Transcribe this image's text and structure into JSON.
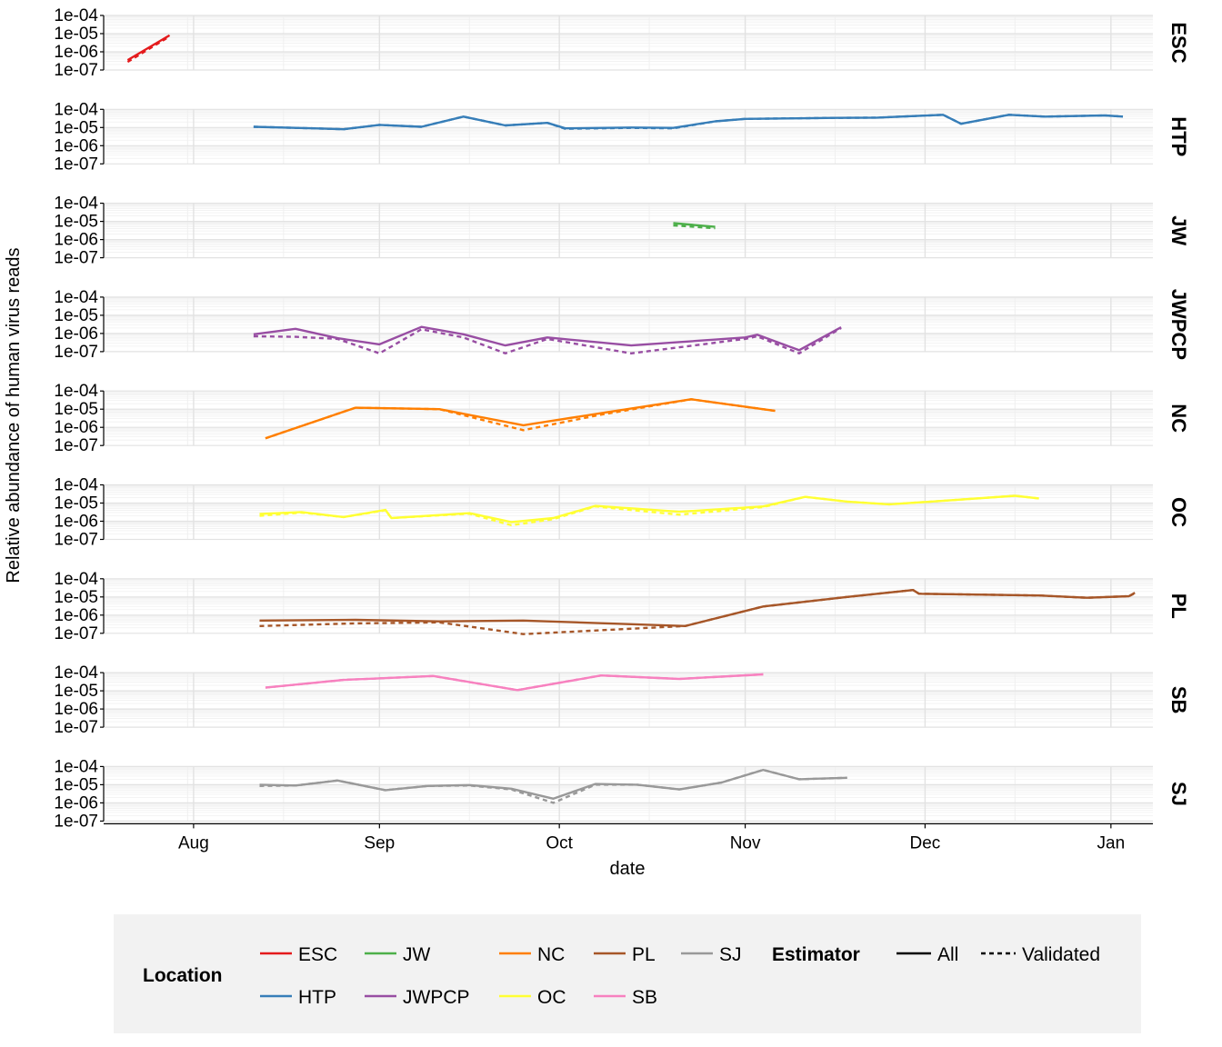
{
  "chart_data": {
    "type": "line",
    "xlabel": "date",
    "ylabel": "Relative abundance of human virus reads",
    "x_ticks": [
      "Aug",
      "Sep",
      "Oct",
      "Nov",
      "Dec",
      "Jan"
    ],
    "x_tick_dates": [
      "2020-08-01",
      "2020-09-01",
      "2020-10-01",
      "2020-11-01",
      "2020-12-01",
      "2021-01-01"
    ],
    "x_range": [
      "2020-07-17",
      "2021-01-08"
    ],
    "y_scale": "log10",
    "y_ticks": [
      "1e-04",
      "1e-05",
      "1e-06",
      "1e-07"
    ],
    "y_range": [
      1e-07,
      0.0001
    ],
    "grid": true,
    "legend": {
      "placement": "bottom",
      "location_title": "Location",
      "estimator_title": "Estimator",
      "locations": [
        {
          "name": "ESC",
          "color": "#E41A1C"
        },
        {
          "name": "HTP",
          "color": "#377EB8"
        },
        {
          "name": "JW",
          "color": "#4DAF4A"
        },
        {
          "name": "JWPCP",
          "color": "#984EA3"
        },
        {
          "name": "NC",
          "color": "#FF7F00"
        },
        {
          "name": "OC",
          "color": "#FFFF33"
        },
        {
          "name": "PL",
          "color": "#A65628"
        },
        {
          "name": "SB",
          "color": "#F781BF"
        },
        {
          "name": "SJ",
          "color": "#999999"
        }
      ],
      "estimators": [
        {
          "name": "All",
          "dash": "solid"
        },
        {
          "name": "Validated",
          "dash": "dashed"
        }
      ]
    },
    "panels": [
      {
        "strip": "ESC",
        "color": "#E41A1C",
        "all": [
          [
            "2020-07-21",
            3.5e-07
          ],
          [
            "2020-07-28",
            8e-06
          ]
        ],
        "validated": [
          [
            "2020-07-21",
            2.8e-07
          ],
          [
            "2020-07-28",
            7e-06
          ]
        ]
      },
      {
        "strip": "HTP",
        "color": "#377EB8",
        "all": [
          [
            "2020-08-11",
            1.1e-05
          ],
          [
            "2020-08-21",
            9e-06
          ],
          [
            "2020-08-26",
            8e-06
          ],
          [
            "2020-09-01",
            1.4e-05
          ],
          [
            "2020-09-08",
            1.1e-05
          ],
          [
            "2020-09-15",
            4e-05
          ],
          [
            "2020-09-22",
            1.3e-05
          ],
          [
            "2020-09-29",
            1.8e-05
          ],
          [
            "2020-10-02",
            9e-06
          ],
          [
            "2020-10-13",
            1e-05
          ],
          [
            "2020-10-20",
            9.5e-06
          ],
          [
            "2020-10-27",
            2.2e-05
          ],
          [
            "2020-11-01",
            3e-05
          ],
          [
            "2020-11-16",
            3.4e-05
          ],
          [
            "2020-11-23",
            3.5e-05
          ],
          [
            "2020-12-01",
            4.5e-05
          ],
          [
            "2020-12-04",
            5e-05
          ],
          [
            "2020-12-07",
            1.6e-05
          ],
          [
            "2020-12-15",
            5e-05
          ],
          [
            "2020-12-21",
            4e-05
          ],
          [
            "2020-12-31",
            4.6e-05
          ],
          [
            "2021-01-03",
            4e-05
          ]
        ],
        "validated": [
          [
            "2020-08-11",
            1.1e-05
          ],
          [
            "2020-08-21",
            9e-06
          ],
          [
            "2020-08-26",
            8e-06
          ],
          [
            "2020-09-01",
            1.4e-05
          ],
          [
            "2020-09-08",
            1.1e-05
          ],
          [
            "2020-09-15",
            4e-05
          ],
          [
            "2020-09-22",
            1.3e-05
          ],
          [
            "2020-09-29",
            1.8e-05
          ],
          [
            "2020-10-02",
            8.5e-06
          ],
          [
            "2020-10-13",
            9.5e-06
          ],
          [
            "2020-10-20",
            9e-06
          ],
          [
            "2020-10-27",
            2.2e-05
          ],
          [
            "2020-11-01",
            3e-05
          ],
          [
            "2020-11-16",
            3.4e-05
          ],
          [
            "2020-11-23",
            3.5e-05
          ],
          [
            "2020-12-01",
            4.5e-05
          ],
          [
            "2020-12-04",
            5e-05
          ],
          [
            "2020-12-07",
            1.6e-05
          ],
          [
            "2020-12-15",
            5e-05
          ],
          [
            "2020-12-21",
            4e-05
          ],
          [
            "2020-12-31",
            4.6e-05
          ],
          [
            "2021-01-03",
            4e-05
          ]
        ]
      },
      {
        "strip": "JW",
        "color": "#4DAF4A",
        "all": [
          [
            "2020-10-20",
            8e-06
          ],
          [
            "2020-10-27",
            5e-06
          ]
        ],
        "validated": [
          [
            "2020-10-20",
            6e-06
          ],
          [
            "2020-10-27",
            4.2e-06
          ]
        ]
      },
      {
        "strip": "JWPCP",
        "color": "#984EA3",
        "all": [
          [
            "2020-08-11",
            9e-07
          ],
          [
            "2020-08-18",
            1.8e-06
          ],
          [
            "2020-08-25",
            5.5e-07
          ],
          [
            "2020-09-01",
            2.5e-07
          ],
          [
            "2020-09-08",
            2.3e-06
          ],
          [
            "2020-09-15",
            9e-07
          ],
          [
            "2020-09-22",
            2.2e-07
          ],
          [
            "2020-09-29",
            6e-07
          ],
          [
            "2020-10-13",
            2.2e-07
          ],
          [
            "2020-11-01",
            6e-07
          ],
          [
            "2020-11-03",
            8.5e-07
          ],
          [
            "2020-11-10",
            1.2e-07
          ],
          [
            "2020-11-17",
            2.2e-06
          ]
        ],
        "validated": [
          [
            "2020-08-11",
            7e-07
          ],
          [
            "2020-08-18",
            6.5e-07
          ],
          [
            "2020-08-25",
            5e-07
          ],
          [
            "2020-09-01",
            8e-08
          ],
          [
            "2020-09-08",
            1.7e-06
          ],
          [
            "2020-09-15",
            6e-07
          ],
          [
            "2020-09-22",
            8e-08
          ],
          [
            "2020-09-29",
            5e-07
          ],
          [
            "2020-10-13",
            8e-08
          ],
          [
            "2020-11-01",
            5e-07
          ],
          [
            "2020-11-03",
            7e-07
          ],
          [
            "2020-11-10",
            8e-08
          ],
          [
            "2020-11-17",
            2e-06
          ]
        ]
      },
      {
        "strip": "NC",
        "color": "#FF7F00",
        "all": [
          [
            "2020-08-13",
            2.5e-07
          ],
          [
            "2020-08-28",
            1.2e-05
          ],
          [
            "2020-09-11",
            1e-05
          ],
          [
            "2020-09-25",
            1.3e-06
          ],
          [
            "2020-10-08",
            6e-06
          ],
          [
            "2020-10-23",
            3.5e-05
          ],
          [
            "2020-11-06",
            8e-06
          ]
        ],
        "validated": [
          [
            "2020-08-13",
            2.5e-07
          ],
          [
            "2020-08-28",
            1.2e-05
          ],
          [
            "2020-09-11",
            1e-05
          ],
          [
            "2020-09-25",
            7e-07
          ],
          [
            "2020-10-08",
            5e-06
          ],
          [
            "2020-10-23",
            3.5e-05
          ],
          [
            "2020-11-06",
            8e-06
          ]
        ]
      },
      {
        "strip": "OC",
        "color": "#FFFF33",
        "all": [
          [
            "2020-08-12",
            2.5e-06
          ],
          [
            "2020-08-19",
            3.2e-06
          ],
          [
            "2020-08-26",
            1.7e-06
          ],
          [
            "2020-09-02",
            4.2e-06
          ],
          [
            "2020-09-03",
            1.5e-06
          ],
          [
            "2020-09-16",
            2.8e-06
          ],
          [
            "2020-09-23",
            9e-07
          ],
          [
            "2020-09-30",
            1.5e-06
          ],
          [
            "2020-10-07",
            7e-06
          ],
          [
            "2020-10-21",
            3.3e-06
          ],
          [
            "2020-11-04",
            6.5e-06
          ],
          [
            "2020-11-11",
            2.2e-05
          ],
          [
            "2020-11-18",
            1.2e-05
          ],
          [
            "2020-11-25",
            8.5e-06
          ],
          [
            "2020-12-02",
            1.2e-05
          ],
          [
            "2020-12-16",
            2.5e-05
          ],
          [
            "2020-12-20",
            1.8e-05
          ]
        ],
        "validated": [
          [
            "2020-08-12",
            2e-06
          ],
          [
            "2020-08-19",
            3e-06
          ],
          [
            "2020-08-26",
            1.7e-06
          ],
          [
            "2020-09-02",
            4e-06
          ],
          [
            "2020-09-03",
            1.5e-06
          ],
          [
            "2020-09-16",
            2.6e-06
          ],
          [
            "2020-09-23",
            6e-07
          ],
          [
            "2020-09-30",
            1.3e-06
          ],
          [
            "2020-10-07",
            6.5e-06
          ],
          [
            "2020-10-21",
            2.3e-06
          ],
          [
            "2020-11-04",
            6e-06
          ],
          [
            "2020-11-11",
            2.2e-05
          ],
          [
            "2020-11-18",
            1.2e-05
          ],
          [
            "2020-11-25",
            8.5e-06
          ],
          [
            "2020-12-02",
            1.2e-05
          ],
          [
            "2020-12-16",
            2.5e-05
          ],
          [
            "2020-12-20",
            1.8e-05
          ]
        ]
      },
      {
        "strip": "PL",
        "color": "#A65628",
        "all": [
          [
            "2020-08-12",
            5e-07
          ],
          [
            "2020-08-28",
            5.5e-07
          ],
          [
            "2020-09-11",
            4.5e-07
          ],
          [
            "2020-09-25",
            5e-07
          ],
          [
            "2020-10-22",
            2.5e-07
          ],
          [
            "2020-11-04",
            3e-06
          ],
          [
            "2020-11-18",
            1e-05
          ],
          [
            "2020-11-29",
            2.4e-05
          ],
          [
            "2020-11-30",
            1.5e-05
          ],
          [
            "2020-12-20",
            1.2e-05
          ],
          [
            "2020-12-28",
            9e-06
          ],
          [
            "2021-01-04",
            1.1e-05
          ],
          [
            "2021-01-05",
            1.7e-05
          ]
        ],
        "validated": [
          [
            "2020-08-12",
            2.5e-07
          ],
          [
            "2020-08-28",
            3.5e-07
          ],
          [
            "2020-09-11",
            4e-07
          ],
          [
            "2020-09-25",
            9e-08
          ],
          [
            "2020-10-22",
            2.5e-07
          ],
          [
            "2020-11-04",
            3e-06
          ],
          [
            "2020-11-18",
            1e-05
          ],
          [
            "2020-11-29",
            2.4e-05
          ],
          [
            "2020-11-30",
            1.5e-05
          ],
          [
            "2020-12-20",
            1.2e-05
          ],
          [
            "2020-12-28",
            9e-06
          ],
          [
            "2021-01-04",
            1.1e-05
          ],
          [
            "2021-01-05",
            1.6e-05
          ]
        ]
      },
      {
        "strip": "SB",
        "color": "#F781BF",
        "all": [
          [
            "2020-08-13",
            1.5e-05
          ],
          [
            "2020-08-26",
            4e-05
          ],
          [
            "2020-09-10",
            6.5e-05
          ],
          [
            "2020-09-24",
            1.1e-05
          ],
          [
            "2020-10-08",
            7e-05
          ],
          [
            "2020-10-21",
            4.5e-05
          ],
          [
            "2020-11-04",
            8e-05
          ]
        ],
        "validated": [
          [
            "2020-08-13",
            1.5e-05
          ],
          [
            "2020-08-26",
            4e-05
          ],
          [
            "2020-09-10",
            6.5e-05
          ],
          [
            "2020-09-24",
            1.1e-05
          ],
          [
            "2020-10-08",
            7e-05
          ],
          [
            "2020-10-21",
            4.5e-05
          ],
          [
            "2020-11-04",
            8e-05
          ]
        ]
      },
      {
        "strip": "SJ",
        "color": "#999999",
        "all": [
          [
            "2020-08-12",
            1e-05
          ],
          [
            "2020-08-18",
            9e-06
          ],
          [
            "2020-08-25",
            1.7e-05
          ],
          [
            "2020-09-02",
            5e-06
          ],
          [
            "2020-09-09",
            8.5e-06
          ],
          [
            "2020-09-16",
            9.5e-06
          ],
          [
            "2020-09-23",
            6e-06
          ],
          [
            "2020-09-30",
            1.7e-06
          ],
          [
            "2020-10-07",
            1.1e-05
          ],
          [
            "2020-10-14",
            1e-05
          ],
          [
            "2020-10-21",
            5.5e-06
          ],
          [
            "2020-10-28",
            1.3e-05
          ],
          [
            "2020-11-04",
            6.5e-05
          ],
          [
            "2020-11-10",
            2e-05
          ],
          [
            "2020-11-18",
            2.4e-05
          ]
        ],
        "validated": [
          [
            "2020-08-12",
            8.5e-06
          ],
          [
            "2020-08-18",
            9e-06
          ],
          [
            "2020-08-25",
            1.7e-05
          ],
          [
            "2020-09-02",
            5e-06
          ],
          [
            "2020-09-09",
            8.5e-06
          ],
          [
            "2020-09-16",
            9e-06
          ],
          [
            "2020-09-23",
            5.5e-06
          ],
          [
            "2020-09-30",
            1e-06
          ],
          [
            "2020-10-07",
            1e-05
          ],
          [
            "2020-10-14",
            1e-05
          ],
          [
            "2020-10-21",
            5.5e-06
          ],
          [
            "2020-10-28",
            1.3e-05
          ],
          [
            "2020-11-04",
            6.5e-05
          ],
          [
            "2020-11-10",
            2e-05
          ],
          [
            "2020-11-18",
            2.4e-05
          ]
        ]
      }
    ]
  }
}
